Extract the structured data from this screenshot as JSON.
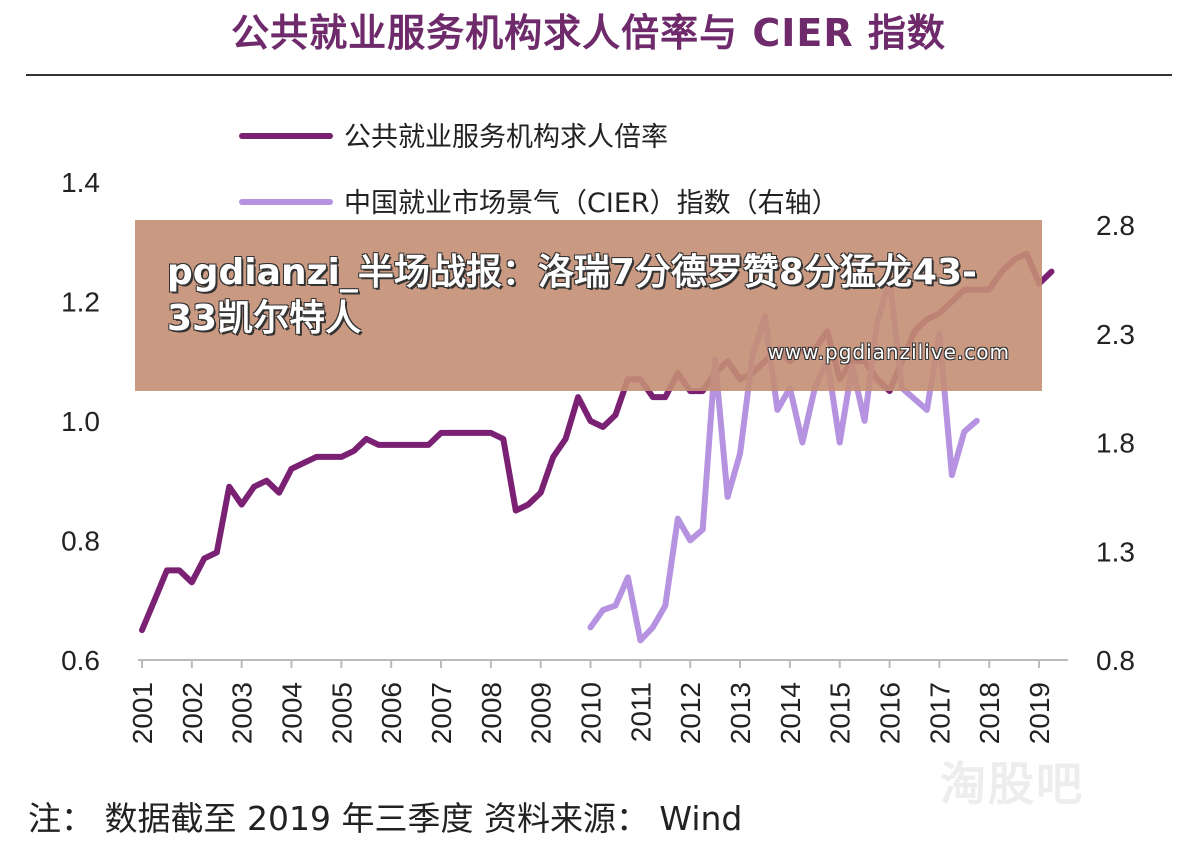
{
  "header": {
    "title": "公共就业服务机构求人倍率与 CIER 指数"
  },
  "footer": {
    "note": "注：  数据截至 2019 年三季度   资料来源：  Wind"
  },
  "overlay": {
    "headline": "pgdianzi_半场战报：洛瑞7分德罗赞8分猛龙43-33凯尔特人",
    "url": "www.pgdianzilive.com"
  },
  "watermark": {
    "text": "淘股吧"
  },
  "chart_data": {
    "type": "line",
    "legend_placement": "top-left",
    "grid": false,
    "x_ticks": [
      "2001",
      "2002",
      "2003",
      "2004",
      "2005",
      "2006",
      "2007",
      "2008",
      "2009",
      "2010",
      "2011",
      "2012",
      "2013",
      "2014",
      "2015",
      "2016",
      "2017",
      "2018",
      "2019"
    ],
    "y_left": {
      "ticks": [
        "0.6",
        "0.8",
        "1.0",
        "1.2",
        "1.4"
      ],
      "range": [
        0.6,
        1.4
      ]
    },
    "y_right": {
      "ticks": [
        "0.8",
        "1.3",
        "1.8",
        "2.3",
        "2.8"
      ],
      "range": [
        0.8,
        2.8
      ]
    },
    "series": [
      {
        "name": "公共就业服务机构求人倍率",
        "axis": "left",
        "color": "#7b2174",
        "points": [
          [
            2001.0,
            0.65
          ],
          [
            2001.25,
            0.7
          ],
          [
            2001.5,
            0.75
          ],
          [
            2001.75,
            0.75
          ],
          [
            2002.0,
            0.73
          ],
          [
            2002.25,
            0.77
          ],
          [
            2002.5,
            0.78
          ],
          [
            2002.75,
            0.89
          ],
          [
            2003.0,
            0.86
          ],
          [
            2003.25,
            0.89
          ],
          [
            2003.5,
            0.9
          ],
          [
            2003.75,
            0.88
          ],
          [
            2004.0,
            0.92
          ],
          [
            2004.25,
            0.93
          ],
          [
            2004.5,
            0.94
          ],
          [
            2004.75,
            0.94
          ],
          [
            2005.0,
            0.94
          ],
          [
            2005.25,
            0.95
          ],
          [
            2005.5,
            0.97
          ],
          [
            2005.75,
            0.96
          ],
          [
            2006.0,
            0.96
          ],
          [
            2006.25,
            0.96
          ],
          [
            2006.5,
            0.96
          ],
          [
            2006.75,
            0.96
          ],
          [
            2007.0,
            0.98
          ],
          [
            2007.25,
            0.98
          ],
          [
            2007.5,
            0.98
          ],
          [
            2007.75,
            0.98
          ],
          [
            2008.0,
            0.98
          ],
          [
            2008.25,
            0.97
          ],
          [
            2008.5,
            0.85
          ],
          [
            2008.75,
            0.86
          ],
          [
            2009.0,
            0.88
          ],
          [
            2009.25,
            0.94
          ],
          [
            2009.5,
            0.97
          ],
          [
            2009.75,
            1.04
          ],
          [
            2010.0,
            1.0
          ],
          [
            2010.25,
            0.99
          ],
          [
            2010.5,
            1.01
          ],
          [
            2010.75,
            1.07
          ],
          [
            2011.0,
            1.07
          ],
          [
            2011.25,
            1.04
          ],
          [
            2011.5,
            1.04
          ],
          [
            2011.75,
            1.08
          ],
          [
            2012.0,
            1.05
          ],
          [
            2012.25,
            1.05
          ],
          [
            2012.5,
            1.08
          ],
          [
            2012.75,
            1.1
          ],
          [
            2013.0,
            1.07
          ],
          [
            2013.25,
            1.08
          ],
          [
            2013.5,
            1.1
          ],
          [
            2013.75,
            1.12
          ],
          [
            2014.0,
            1.1
          ],
          [
            2014.25,
            1.12
          ],
          [
            2014.5,
            1.12
          ],
          [
            2014.75,
            1.15
          ],
          [
            2015.0,
            1.07
          ],
          [
            2015.25,
            1.1
          ],
          [
            2015.5,
            1.1
          ],
          [
            2015.75,
            1.07
          ],
          [
            2016.0,
            1.05
          ],
          [
            2016.25,
            1.1
          ],
          [
            2016.5,
            1.15
          ],
          [
            2016.75,
            1.17
          ],
          [
            2017.0,
            1.18
          ],
          [
            2017.25,
            1.2
          ],
          [
            2017.5,
            1.22
          ],
          [
            2017.75,
            1.22
          ],
          [
            2018.0,
            1.22
          ],
          [
            2018.25,
            1.25
          ],
          [
            2018.5,
            1.27
          ],
          [
            2018.75,
            1.28
          ],
          [
            2019.0,
            1.23
          ],
          [
            2019.25,
            1.25
          ]
        ]
      },
      {
        "name": "中国就业市场景气（CIER）指数（右轴）",
        "axis": "right",
        "color": "#b593e0",
        "points": [
          [
            2010.0,
            0.95
          ],
          [
            2010.25,
            1.03
          ],
          [
            2010.5,
            1.05
          ],
          [
            2010.75,
            1.18
          ],
          [
            2011.0,
            0.89
          ],
          [
            2011.25,
            0.95
          ],
          [
            2011.5,
            1.05
          ],
          [
            2011.75,
            1.45
          ],
          [
            2012.0,
            1.35
          ],
          [
            2012.25,
            1.4
          ],
          [
            2012.5,
            2.18
          ],
          [
            2012.75,
            1.55
          ],
          [
            2013.0,
            1.75
          ],
          [
            2013.25,
            2.2
          ],
          [
            2013.5,
            2.38
          ],
          [
            2013.75,
            1.95
          ],
          [
            2014.0,
            2.05
          ],
          [
            2014.25,
            1.8
          ],
          [
            2014.5,
            2.05
          ],
          [
            2014.75,
            2.18
          ],
          [
            2015.0,
            1.8
          ],
          [
            2015.25,
            2.15
          ],
          [
            2015.5,
            1.9
          ],
          [
            2015.75,
            2.35
          ],
          [
            2016.0,
            2.55
          ],
          [
            2016.25,
            2.05
          ],
          [
            2016.5,
            2.0
          ],
          [
            2016.75,
            1.95
          ],
          [
            2017.0,
            2.3
          ],
          [
            2017.25,
            1.65
          ],
          [
            2017.5,
            1.85
          ],
          [
            2017.75,
            1.9
          ]
        ]
      }
    ]
  }
}
